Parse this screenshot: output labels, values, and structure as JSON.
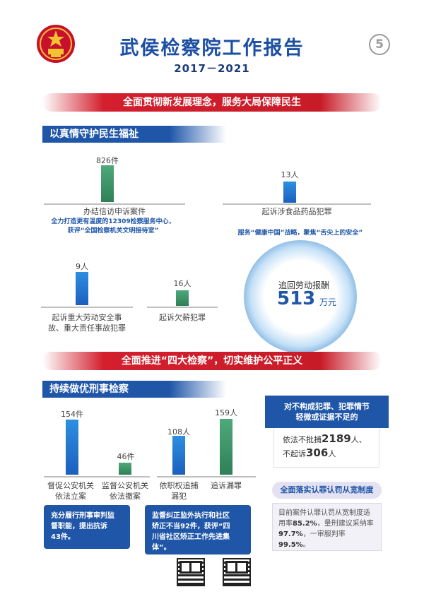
{
  "header": {
    "title": "武侯检察院工作报告",
    "years": "2017－2021",
    "page_number": "5"
  },
  "banner1": "全面贯彻新发展理念，服务大局保障民生",
  "section1": {
    "title": "以真情守护民生福祉",
    "items": [
      {
        "value": "826件",
        "label": "办结信访申诉案件",
        "note_line1": "全力打造更有温度的12309检察服务中心，",
        "note_line2": "获评“全国检察机关文明接待室”"
      },
      {
        "value": "13人",
        "label": "起诉涉食品药品犯罪",
        "note": "服务“健康中国”战略，聚焦“舌尖上的安全”"
      },
      {
        "value": "9人",
        "label_line1": "起诉重大劳动安全事",
        "label_line2": "故、重大责任事故犯罪"
      },
      {
        "value": "16人",
        "label": "起诉欠薪犯罪"
      }
    ],
    "wage_recovery": {
      "label": "追回劳动报酬",
      "value": "513",
      "unit": "万元"
    }
  },
  "banner2": "全面推进“四大检察”，切实维护公平正义",
  "section2": {
    "title": "持续做优刑事检察",
    "items": [
      {
        "value": "154件",
        "label_line1": "督促公安机关",
        "label_line2": "依法立案"
      },
      {
        "value": "46件",
        "label_line1": "监督公安机关",
        "label_line2": "依法撤案"
      },
      {
        "value": "108人",
        "label_line1": "依职权追捕",
        "label_line2": "漏犯"
      },
      {
        "value": "159人",
        "label": "追诉漏罪"
      }
    ],
    "box_left_line1": "充分履行刑事审判监",
    "box_left_line2": "督职能，提出抗诉",
    "box_left_line3": "43件。",
    "box_mid_line1": "监督纠正监外执行和社区",
    "box_mid_line2": "矫正不当92件，获评“四",
    "box_mid_line3": "川省社区矫正工作先进集",
    "box_mid_line4": "体”。",
    "right_card1": {
      "head_line1": "对不构成犯罪、犯罪情节",
      "head_line2": "轻微或证据不足的",
      "line1_prefix": "依法不批捕",
      "line1_value": "2189",
      "line1_suffix": "人、",
      "line2_prefix": "不起诉",
      "line2_value": "306",
      "line2_suffix": "人"
    },
    "right_card2": {
      "head": "全面落实认罪认罚从宽制度",
      "line1": "目前案件认罪认罚从宽制度适",
      "line2_prefix": "用率",
      "line2_value": "85.2%",
      "line2_suffix": "，量刑建议采纳率",
      "line3_value": "97.7%",
      "line3_prefix2": "，一审服判率",
      "line3_value2": "99.5%",
      "line3_end": "。"
    }
  },
  "chart_data": [
    {
      "type": "bar",
      "categories": [
        "办结信访申诉案件",
        "起诉涉食品药品犯罪",
        "起诉重大劳动安全事故、重大责任事故犯罪",
        "起诉欠薪犯罪"
      ],
      "values": [
        826,
        13,
        9,
        16
      ],
      "units": [
        "件",
        "人",
        "人",
        "人"
      ]
    },
    {
      "type": "bar",
      "categories": [
        "督促公安机关依法立案",
        "监督公安机关依法撤案",
        "依职权追捕漏犯",
        "追诉漏罪"
      ],
      "values": [
        154,
        46,
        108,
        159
      ],
      "units": [
        "件",
        "件",
        "人",
        "人"
      ]
    }
  ]
}
